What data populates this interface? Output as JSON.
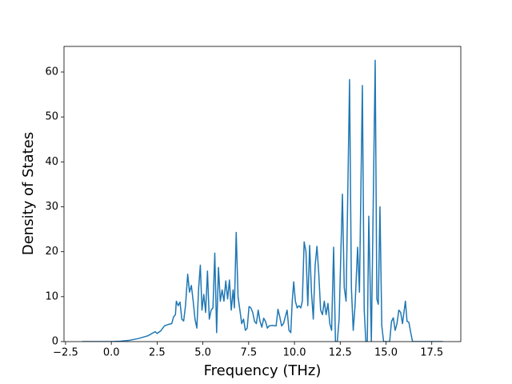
{
  "chart_data": {
    "type": "line",
    "x_label": "Frequency (THz)",
    "y_label": "Density of States",
    "x": [
      -1.6,
      0,
      0.5,
      1.0,
      1.5,
      2.0,
      2.3,
      2.4,
      2.5,
      2.7,
      2.9,
      3.1,
      3.3,
      3.4,
      3.5,
      3.55,
      3.65,
      3.75,
      3.85,
      3.95,
      4.05,
      4.17,
      4.27,
      4.37,
      4.47,
      4.57,
      4.67,
      4.77,
      4.86,
      4.95,
      5.05,
      5.15,
      5.25,
      5.35,
      5.45,
      5.55,
      5.65,
      5.75,
      5.85,
      5.95,
      6.05,
      6.15,
      6.25,
      6.35,
      6.45,
      6.55,
      6.65,
      6.72,
      6.82,
      6.92,
      7.02,
      7.12,
      7.22,
      7.32,
      7.42,
      7.52,
      7.62,
      7.72,
      7.82,
      7.92,
      8.02,
      8.12,
      8.22,
      8.32,
      8.42,
      8.52,
      8.62,
      8.8,
      9.0,
      9.1,
      9.2,
      9.3,
      9.4,
      9.5,
      9.6,
      9.7,
      9.8,
      9.88,
      9.96,
      10.05,
      10.15,
      10.25,
      10.35,
      10.43,
      10.53,
      10.63,
      10.73,
      10.83,
      10.93,
      11.03,
      11.13,
      11.23,
      11.33,
      11.43,
      11.53,
      11.63,
      11.73,
      11.83,
      11.93,
      12.03,
      12.14,
      12.24,
      12.34,
      12.44,
      12.62,
      12.72,
      12.82,
      13.01,
      13.11,
      13.21,
      13.31,
      13.45,
      13.55,
      13.71,
      13.81,
      13.9,
      13.98,
      14.06,
      14.2,
      14.41,
      14.5,
      14.58,
      14.67,
      14.77,
      14.87,
      15.2,
      15.3,
      15.4,
      15.5,
      15.6,
      15.7,
      15.8,
      15.9,
      16.06,
      16.15,
      16.25,
      16.35,
      16.45,
      17.0,
      18.1
    ],
    "series": [
      {
        "name": "DOS",
        "color": "#1f77b4",
        "values": [
          0,
          0,
          0.1,
          0.3,
          0.7,
          1.3,
          2.0,
          2.2,
          1.8,
          2.4,
          3.5,
          3.8,
          4.0,
          5.5,
          6,
          9,
          8,
          8.8,
          5,
          4.6,
          8,
          15,
          11,
          12.5,
          9,
          5,
          3,
          12,
          17,
          7,
          10.5,
          6.5,
          15.7,
          5,
          7,
          7.5,
          19.7,
          2,
          16.5,
          9,
          11.5,
          9,
          13.5,
          9.5,
          13.7,
          7,
          11.5,
          7.5,
          24.3,
          10,
          7,
          4,
          5,
          2.5,
          3,
          7.8,
          7.5,
          6.5,
          4.5,
          4,
          7,
          4.5,
          3.2,
          5.2,
          4.5,
          3,
          3.5,
          3.6,
          3.5,
          7.2,
          5.5,
          3.5,
          4,
          5.5,
          7,
          2.5,
          2,
          9,
          13.3,
          9,
          7.5,
          8,
          7.5,
          9,
          22.2,
          20,
          8,
          21.4,
          11,
          5,
          17,
          21.2,
          15,
          7,
          6,
          9,
          6,
          8.5,
          4,
          2.5,
          21,
          0,
          0,
          5,
          32.8,
          12,
          9,
          58.3,
          12,
          2.5,
          8,
          21,
          11,
          57,
          7,
          0,
          0,
          27.9,
          0,
          62.6,
          9.5,
          8.3,
          30,
          3.5,
          0,
          0,
          4.5,
          5.3,
          2.5,
          4,
          7,
          6.5,
          4,
          9,
          4.5,
          4.3,
          2,
          0,
          0,
          0
        ]
      }
    ],
    "xlim": [
      -2.585,
      19.085
    ],
    "ylim": [
      0,
      65.7
    ],
    "xticks": [
      {
        "value": -2.5,
        "label": "−2.5"
      },
      {
        "value": 0,
        "label": "0.0"
      },
      2.5,
      {
        "value": 5,
        "label": "5.0"
      },
      7.5,
      {
        "value": 10,
        "label": "10.0"
      },
      12.5,
      {
        "value": 15,
        "label": "15.0"
      },
      17.5
    ],
    "yticks": [
      0,
      10,
      20,
      30,
      40,
      50,
      60
    ]
  }
}
